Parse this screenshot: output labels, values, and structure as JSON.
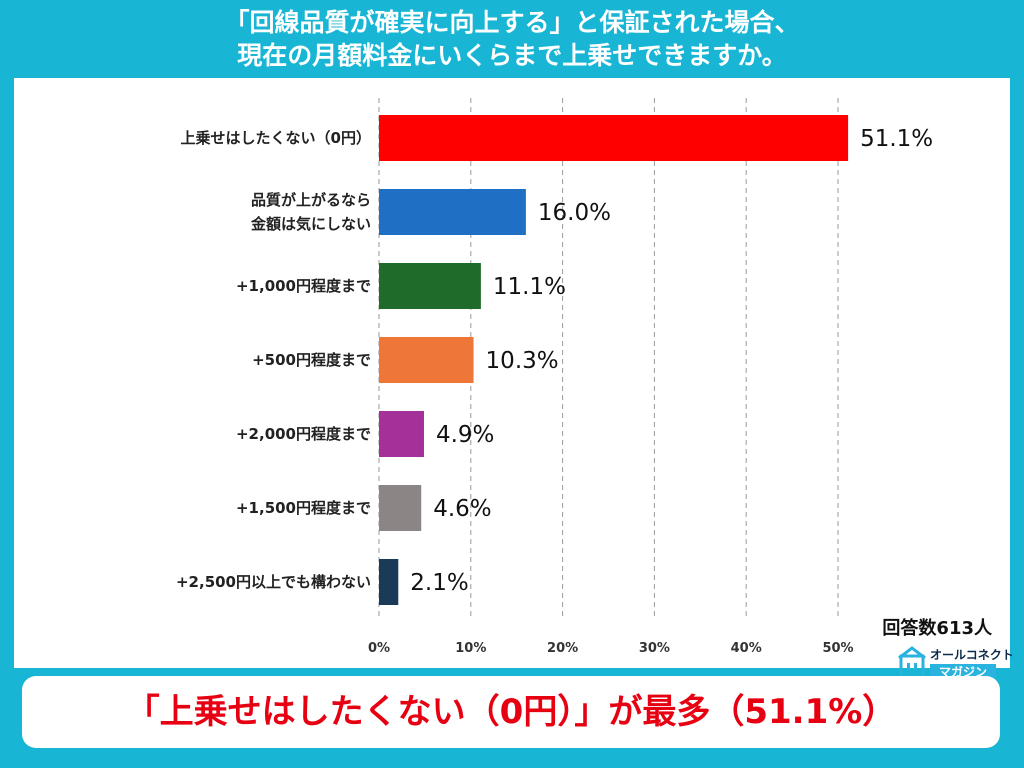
{
  "header": {
    "title_line1": "「回線品質が確実に向上する」と保証された場合、",
    "title_line2": "現在の月額料金にいくらまで上乗せできますか。"
  },
  "chart_data": {
    "type": "bar",
    "orientation": "horizontal",
    "categories": [
      "上乗せはしたくない（0円）",
      "品質が上がるなら\n金額は気にしない",
      "+1,000円程度まで",
      "+500円程度まで",
      "+2,000円程度まで",
      "+1,500円程度まで",
      "+2,500円以上でも構わない"
    ],
    "values": [
      51.1,
      16.0,
      11.1,
      10.3,
      4.9,
      4.6,
      2.1
    ],
    "value_labels": [
      "51.1%",
      "16.0%",
      "11.1%",
      "10.3%",
      "4.9%",
      "4.6%",
      "2.1%"
    ],
    "colors": [
      "#ff0000",
      "#1f6fc5",
      "#1f6b2a",
      "#ee7638",
      "#a4309a",
      "#8b8585",
      "#1b3a58"
    ],
    "xlim": [
      0,
      50
    ],
    "ticks": [
      0,
      10,
      20,
      30,
      40,
      50
    ],
    "tick_labels": [
      "0%",
      "10%",
      "20%",
      "30%",
      "40%",
      "50%"
    ],
    "grid": "vertical-dashed"
  },
  "respondents": "回答数613人",
  "logo": {
    "top_text": "オールコネクト",
    "bottom_text": "マガジン"
  },
  "banner": {
    "text": "「上乗せはしたくない（0円）」が最多（51.1%）"
  }
}
